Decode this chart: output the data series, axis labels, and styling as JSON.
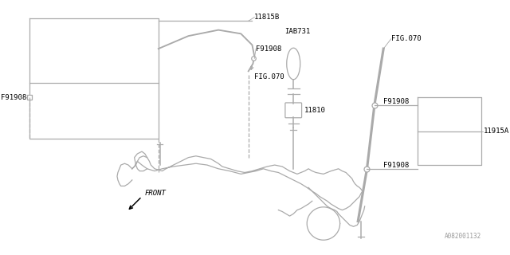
{
  "background_color": "#ffffff",
  "line_color": "#aaaaaa",
  "text_color": "#000000",
  "fig_width": 6.4,
  "fig_height": 3.2,
  "dpi": 100,
  "watermark": "A082001132",
  "label_11815B": "11815B",
  "label_F91908": "F91908",
  "label_FIG070": "FIG.070",
  "label_IAB731": "IAB731",
  "label_11810": "11810",
  "label_11915A": "11915A",
  "label_FRONT": "FRONT"
}
